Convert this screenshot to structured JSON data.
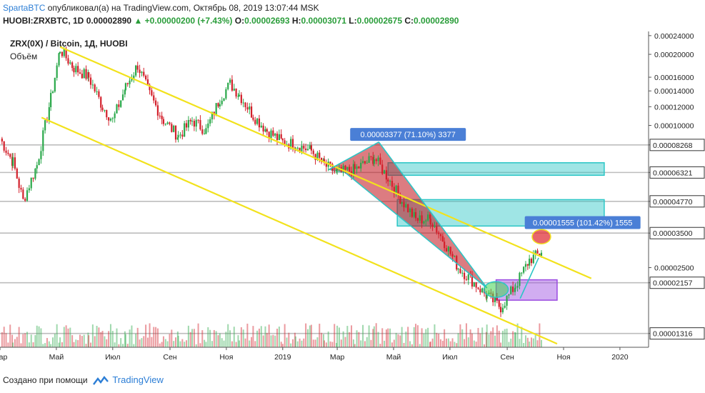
{
  "header": {
    "user": "SpartaBTC",
    "published_text": "опубликовал(а) на TradingView.com, Октябрь 08, 2019 13:07:44 MSK",
    "symbol": "HUOBI:ZRXBTC, 1D",
    "last": "0.00002890",
    "change": "▲ +0.00000200 (+7.43%)",
    "o_label": "O:",
    "o_value": "0.00002693",
    "h_label": "H:",
    "h_value": "0.00003071",
    "l_label": "L:",
    "l_value": "0.00002675",
    "c_label": "C:",
    "c_value": "0.00002890"
  },
  "chart": {
    "title": "ZRX(0X) / Bitcoin, 1Д, HUOBI",
    "volume_label": "Объём"
  },
  "footer": {
    "created_with": "Создано при помощи",
    "brand": "TradingView"
  },
  "chart_data": {
    "type": "candlestick",
    "title": "ZRX(0X) / Bitcoin, 1Д, HUOBI",
    "y_scale": "log",
    "y_range": [
      1.15e-05,
      0.00025
    ],
    "y_ticks": [
      "0.00024000",
      "0.00020000",
      "0.00016000",
      "0.00014000",
      "0.00012000",
      "0.00010000",
      "0.00008268",
      "0.00006321",
      "0.00004770",
      "0.00003500",
      "0.00002500",
      "0.00002157",
      "0.00001316"
    ],
    "x_ticks": [
      "Мар",
      "Май",
      "Июл",
      "Сен",
      "Ноя",
      "2019",
      "Мар",
      "Май",
      "Июл",
      "Сен",
      "Ноя",
      "2020"
    ],
    "x_range": [
      "2018-03-01",
      "2020-02-01"
    ],
    "x_tick_dates": [
      "2018-03-01",
      "2018-05-01",
      "2018-07-01",
      "2018-09-01",
      "2018-11-01",
      "2019-01-01",
      "2019-03-01",
      "2019-05-01",
      "2019-07-01",
      "2019-09-01",
      "2019-11-01",
      "2020-01-01"
    ],
    "price_path": [
      [
        "2018-03-01",
        8.8e-05
      ],
      [
        "2018-03-15",
        7e-05
      ],
      [
        "2018-03-26",
        4.8e-05
      ],
      [
        "2018-04-10",
        6.8e-05
      ],
      [
        "2018-04-25",
        0.00013
      ],
      [
        "2018-05-05",
        0.00021
      ],
      [
        "2018-05-20",
        0.000175
      ],
      [
        "2018-06-05",
        0.00016
      ],
      [
        "2018-06-20",
        0.00012
      ],
      [
        "2018-07-01",
        0.000105
      ],
      [
        "2018-07-15",
        0.000145
      ],
      [
        "2018-07-28",
        0.00018
      ],
      [
        "2018-08-10",
        0.000135
      ],
      [
        "2018-08-25",
        0.000105
      ],
      [
        "2018-09-10",
        9e-05
      ],
      [
        "2018-09-25",
        0.000105
      ],
      [
        "2018-10-10",
        9.5e-05
      ],
      [
        "2018-10-25",
        0.00013
      ],
      [
        "2018-11-05",
        0.00015
      ],
      [
        "2018-11-15",
        0.000135
      ],
      [
        "2018-11-30",
        0.00011
      ],
      [
        "2018-12-15",
        9.5e-05
      ],
      [
        "2019-01-01",
        8.5e-05
      ],
      [
        "2019-01-15",
        8.3e-05
      ],
      [
        "2019-02-01",
        7.8e-05
      ],
      [
        "2019-02-15",
        6.8e-05
      ],
      [
        "2019-03-01",
        6.3e-05
      ],
      [
        "2019-03-20",
        6.5e-05
      ],
      [
        "2019-04-10",
        7.3e-05
      ],
      [
        "2019-04-25",
        6e-05
      ],
      [
        "2019-05-10",
        4.8e-05
      ],
      [
        "2019-05-25",
        4e-05
      ],
      [
        "2019-06-10",
        4e-05
      ],
      [
        "2019-06-25",
        3.2e-05
      ],
      [
        "2019-07-10",
        2.5e-05
      ],
      [
        "2019-07-25",
        2.2e-05
      ],
      [
        "2019-08-10",
        1.9e-05
      ],
      [
        "2019-08-25",
        1.7e-05
      ],
      [
        "2019-09-10",
        2.1e-05
      ],
      [
        "2019-09-25",
        2.7e-05
      ],
      [
        "2019-10-08",
        2.89e-05
      ]
    ],
    "price_labels": [
      "0.00008268",
      "0.00006321",
      "0.00004770",
      "0.00003500",
      "0.00002157",
      "0.00001316"
    ],
    "price_label_values": [
      8.268e-05,
      6.321e-05,
      4.77e-05,
      3.5e-05,
      2.157e-05,
      1.316e-05
    ],
    "trendlines": [
      {
        "from": [
          "2018-05-05",
          0.000215
        ],
        "to": [
          "2019-12-01",
          2.25e-05
        ]
      },
      {
        "from": [
          "2018-04-15",
          0.000108
        ],
        "to": [
          "2019-10-25",
          1.19e-05
        ]
      },
      {
        "from": [
          "2019-02-20",
          6.5e-05
        ],
        "to": [
          "2019-04-15",
          8.5e-05
        ]
      },
      {
        "from": [
          "2019-03-10",
          6.3e-05
        ],
        "to": [
          "2019-08-10",
          2.05e-05
        ]
      },
      {
        "from": [
          "2019-04-15",
          8.5e-05
        ],
        "to": [
          "2019-08-10",
          2.05e-05
        ]
      },
      {
        "from": [
          "2019-09-15",
          1.85e-05
        ],
        "to": [
          "2019-10-05",
          2.75e-05
        ]
      }
    ],
    "zones": [
      {
        "x": [
          "2019-04-25",
          "2019-12-15"
        ],
        "y": [
          6.15e-05,
          6.95e-05
        ],
        "color": "#2bc6c6"
      },
      {
        "x": [
          "2019-05-05",
          "2019-12-15"
        ],
        "y": [
          3.75e-05,
          4.85e-05
        ],
        "color": "#2bc6c6"
      },
      {
        "x": [
          "2019-08-20",
          "2019-10-25"
        ],
        "y": [
          1.82e-05,
          2.22e-05
        ],
        "color": "#9a4ae0"
      }
    ],
    "measure_labels": [
      {
        "text": "0.00003377 (71.10%) 3377",
        "x": "2019-03-15",
        "y": 9.1e-05
      },
      {
        "text": "0.00001555 (101.42%) 1555",
        "x": "2019-09-20",
        "y": 3.85e-05
      }
    ]
  }
}
